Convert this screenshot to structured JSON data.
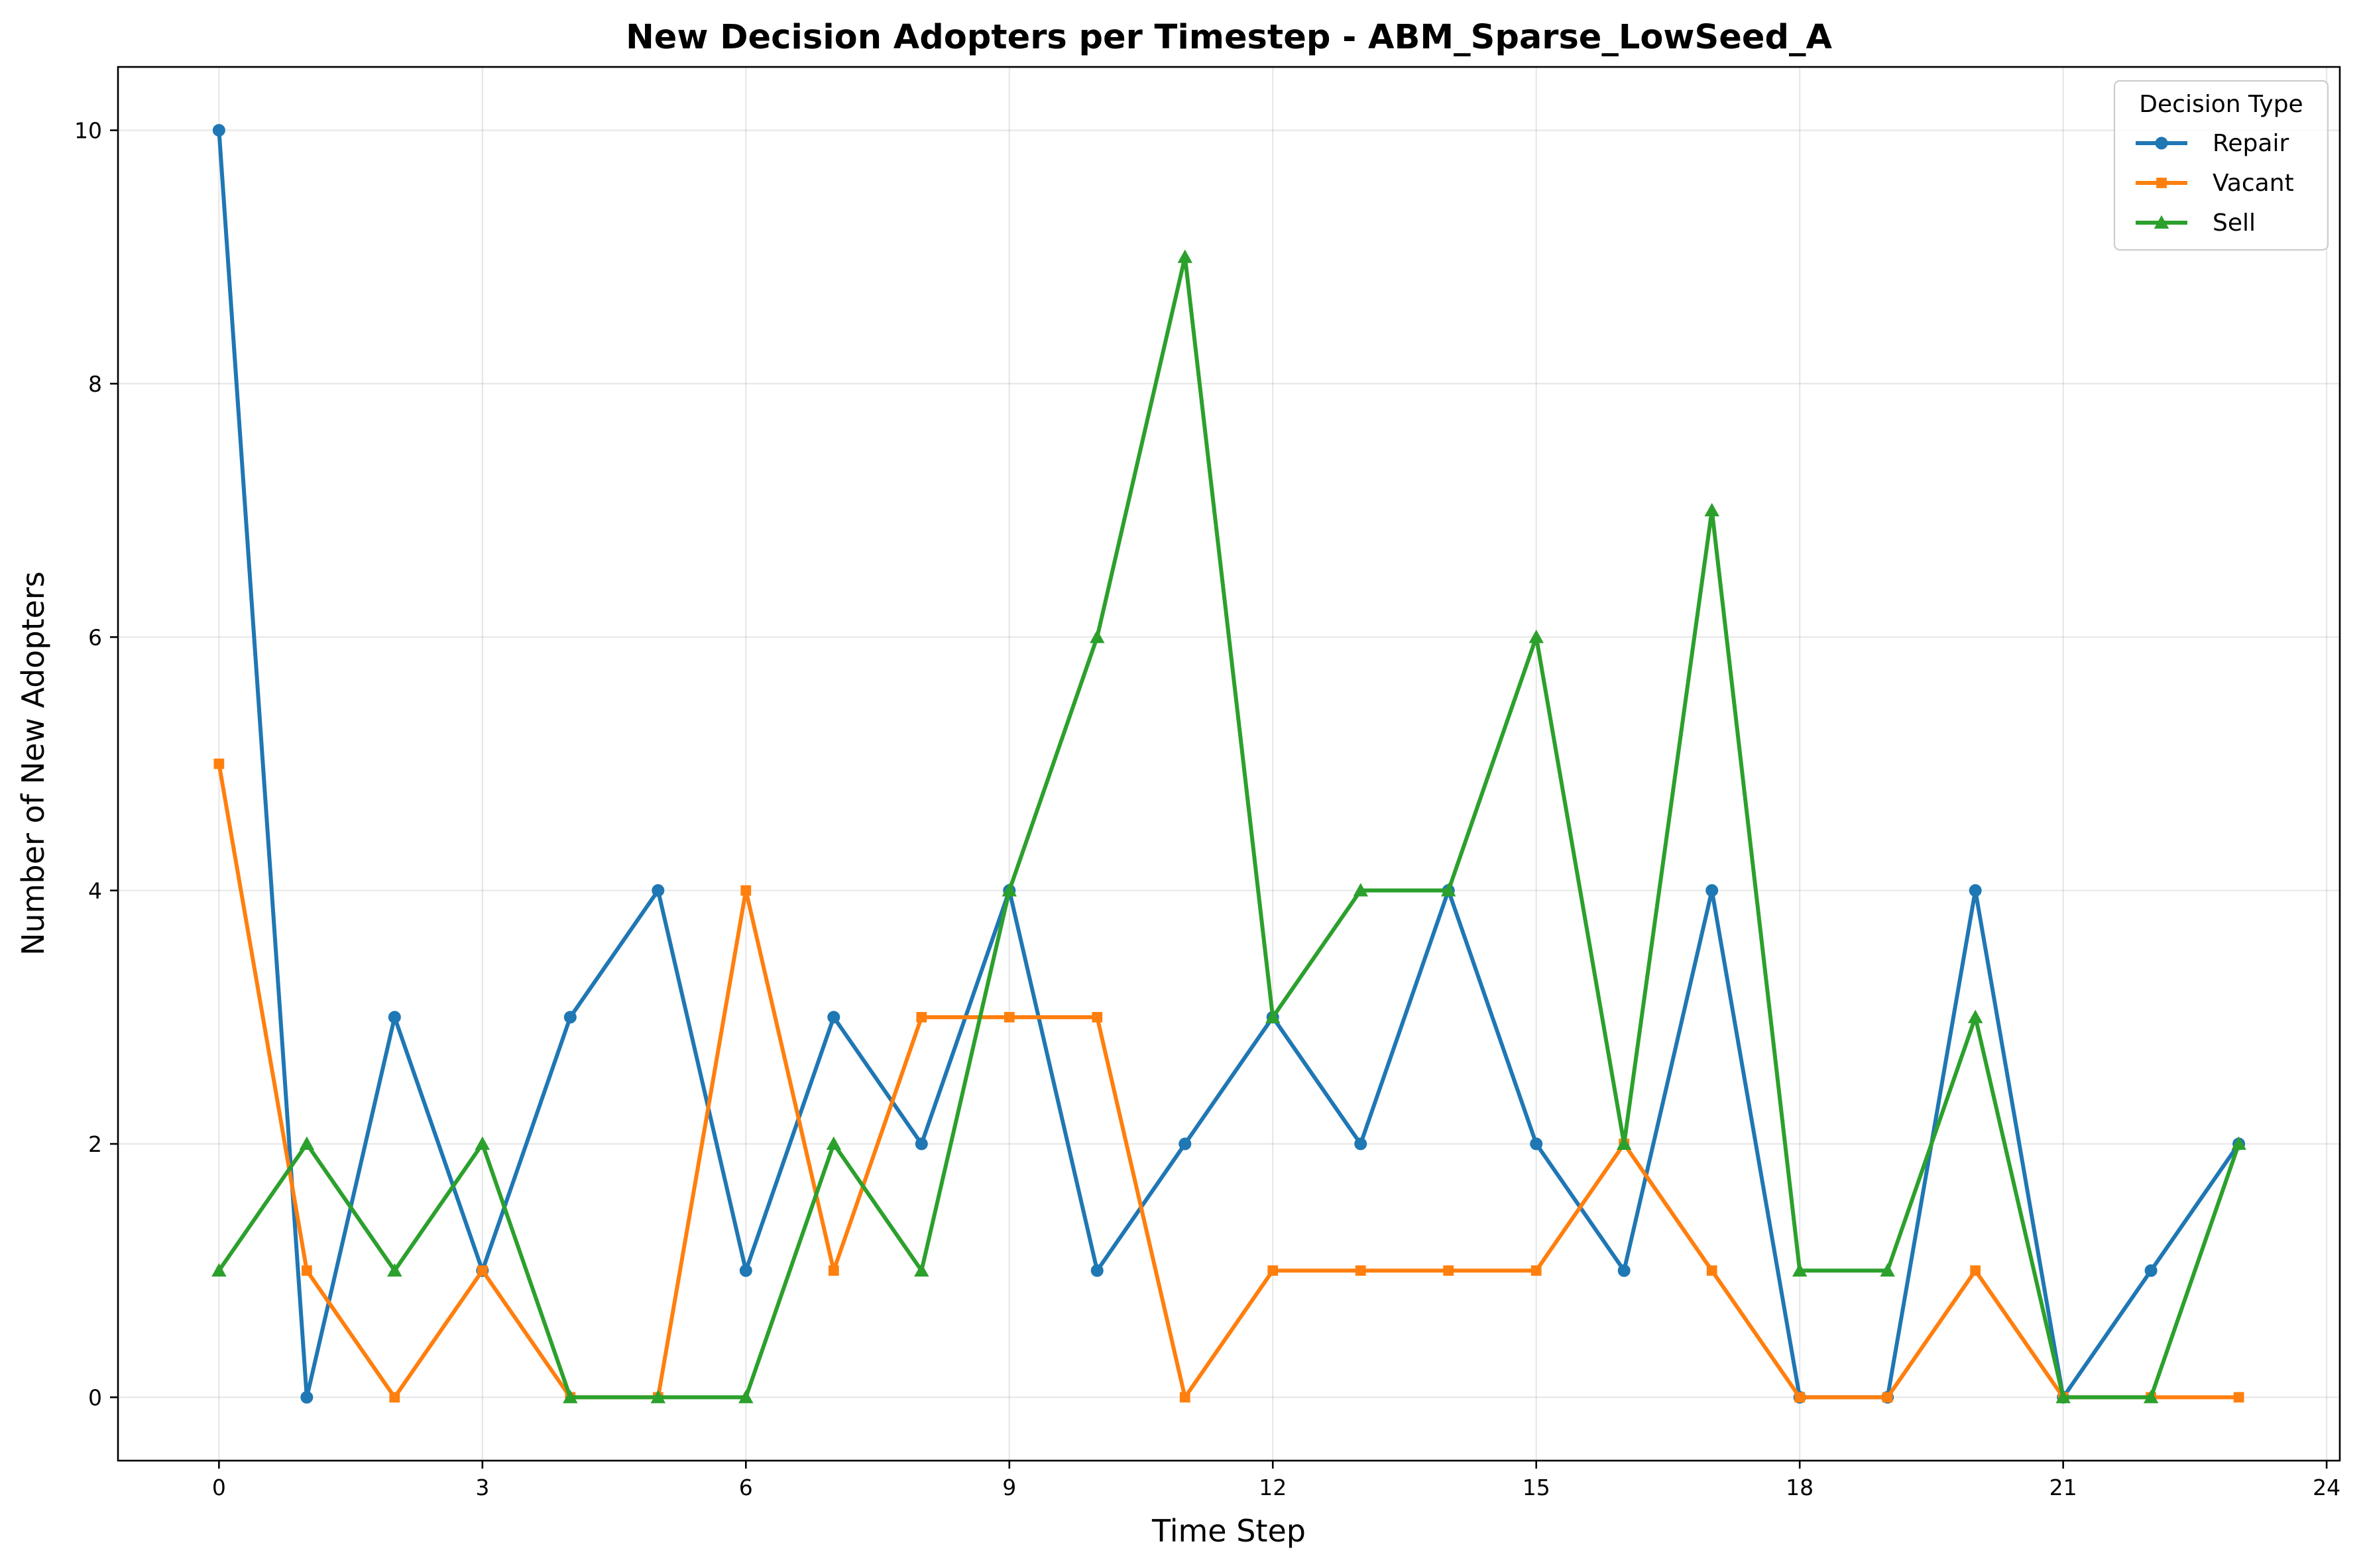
{
  "chart_data": {
    "type": "line",
    "title": "New Decision Adopters per Timestep - ABM_Sparse_LowSeed_A",
    "xlabel": "Time Step",
    "ylabel": "Number of New Adopters",
    "xlim": [
      -1.15,
      24.15
    ],
    "ylim": [
      -0.5,
      10.5
    ],
    "xticks": [
      0,
      3,
      6,
      9,
      12,
      15,
      18,
      21,
      24
    ],
    "yticks": [
      0,
      2,
      4,
      6,
      8,
      10
    ],
    "grid": true,
    "legend": {
      "title": "Decision Type",
      "placement": "top-right"
    },
    "x": [
      0,
      1,
      2,
      3,
      4,
      5,
      6,
      7,
      8,
      9,
      10,
      11,
      12,
      13,
      14,
      15,
      16,
      17,
      18,
      19,
      20,
      21,
      22,
      23
    ],
    "series": [
      {
        "name": "Repair",
        "color": "#1f77b4",
        "marker": "circle",
        "values": [
          10,
          0,
          3,
          1,
          3,
          4,
          1,
          3,
          2,
          4,
          1,
          2,
          3,
          2,
          4,
          2,
          1,
          4,
          0,
          0,
          4,
          0,
          1,
          2
        ]
      },
      {
        "name": "Vacant",
        "color": "#ff7f0e",
        "marker": "square",
        "values": [
          5,
          1,
          0,
          1,
          0,
          0,
          4,
          1,
          3,
          3,
          3,
          0,
          1,
          1,
          1,
          1,
          2,
          1,
          0,
          0,
          1,
          0,
          0,
          0
        ]
      },
      {
        "name": "Sell",
        "color": "#2ca02c",
        "marker": "triangle",
        "values": [
          1,
          2,
          1,
          2,
          0,
          0,
          0,
          2,
          1,
          4,
          6,
          9,
          3,
          4,
          4,
          6,
          2,
          7,
          1,
          1,
          3,
          0,
          0,
          2
        ]
      }
    ]
  }
}
